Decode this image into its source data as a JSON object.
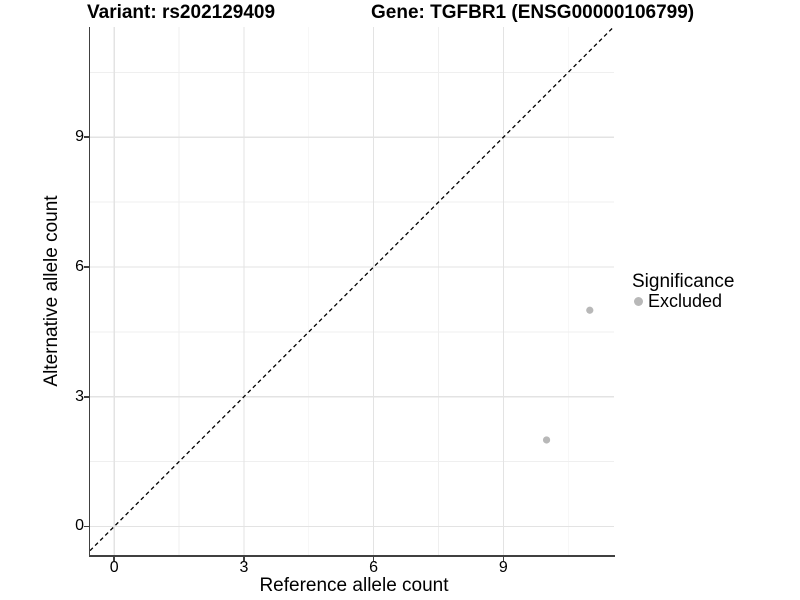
{
  "header": {
    "variant_title": "Variant: rs202129409",
    "gene_title": "Gene: TGFBR1 (ENSG00000106799)"
  },
  "chart_data": {
    "type": "scatter",
    "xlabel": "Reference allele count",
    "ylabel": "Alternative allele count",
    "xlim": [
      -0.56,
      11.56
    ],
    "ylim": [
      -0.66,
      11.55
    ],
    "x_ticks": [
      0,
      3,
      6,
      9
    ],
    "y_ticks": [
      0,
      3,
      6,
      9
    ],
    "x_minor_ticks": [
      1.5,
      4.5,
      7.5,
      10.5
    ],
    "y_minor_ticks": [
      1.5,
      4.5,
      7.5,
      10.5
    ],
    "grid": "major and minor gridlines on",
    "identity_line": {
      "equation": "y = x",
      "style": "dashed",
      "color": "#000000"
    },
    "series": [
      {
        "name": "Excluded",
        "color": "#b8b8b8",
        "points": [
          {
            "x": 10,
            "y": 2
          },
          {
            "x": 11,
            "y": 5
          }
        ]
      }
    ],
    "legend": {
      "position": "right",
      "title": "Significance",
      "items": [
        {
          "label": "Excluded",
          "color": "#b8b8b8"
        }
      ]
    }
  },
  "style": {
    "axis_line_color": "#404040",
    "major_grid_color": "#e3e3e3",
    "minor_grid_color": "#efefef",
    "point_color": "#b8b8b8",
    "text_color": "#000000"
  }
}
